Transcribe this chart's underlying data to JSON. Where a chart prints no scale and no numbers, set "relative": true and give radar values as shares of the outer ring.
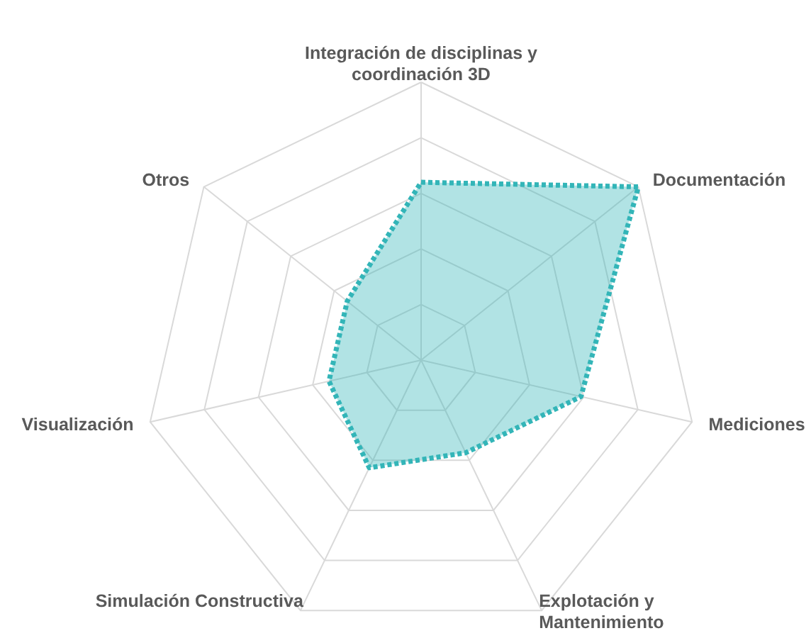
{
  "chart_data": {
    "type": "radar",
    "relative": true,
    "categories": [
      "Integración de disciplinas y coordinación 3D",
      "Documentación",
      "Mediciones",
      "Explotación y Mantenimiento",
      "Simulación Constructiva",
      "Visualización",
      "Otros"
    ],
    "series": [
      {
        "color": "#33b5b8",
        "values": [
          0.64,
          1.0,
          0.59,
          0.37,
          0.43,
          0.34,
          0.34
        ]
      }
    ],
    "line_style": "dotted",
    "marker": "none",
    "grid": true
  }
}
